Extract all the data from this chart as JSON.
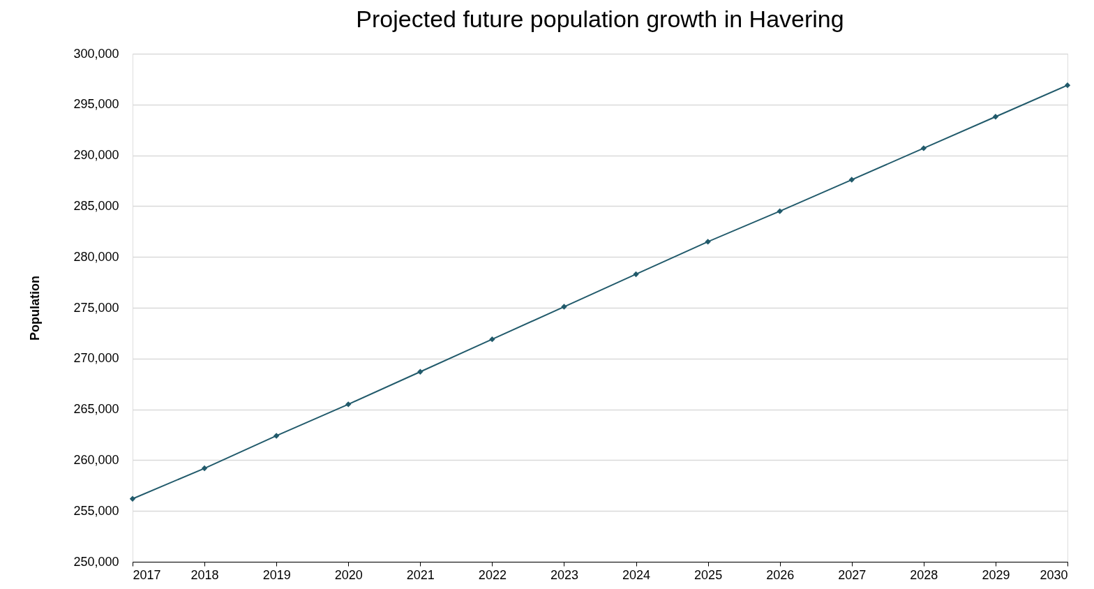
{
  "chart_data": {
    "type": "line",
    "title": "Projected future population growth in Havering",
    "ylabel": "Population",
    "x": [
      2017,
      2018,
      2019,
      2020,
      2021,
      2022,
      2023,
      2024,
      2025,
      2026,
      2027,
      2028,
      2029,
      2030
    ],
    "series": [
      {
        "color": "#215a6b",
        "values": [
          256200,
          259200,
          262400,
          265500,
          268700,
          271900,
          275100,
          278300,
          281500,
          284500,
          287600,
          290700,
          293800,
          296900
        ]
      }
    ],
    "xlim": [
      2017,
      2030
    ],
    "xticks": [
      2017,
      2018,
      2019,
      2020,
      2021,
      2022,
      2023,
      2024,
      2025,
      2026,
      2027,
      2028,
      2029,
      2030
    ],
    "ylim": [
      250000,
      300000
    ],
    "yticks": [
      {
        "value": 250000,
        "label": "250,000"
      },
      {
        "value": 255000,
        "label": "255,000"
      },
      {
        "value": 260000,
        "label": "260,000"
      },
      {
        "value": 265000,
        "label": "265,000"
      },
      {
        "value": 270000,
        "label": "270,000"
      },
      {
        "value": 275000,
        "label": "275,000"
      },
      {
        "value": 280000,
        "label": "280,000"
      },
      {
        "value": 285000,
        "label": "285,000"
      },
      {
        "value": 290000,
        "label": "290,000"
      },
      {
        "value": 295000,
        "label": "295,000"
      },
      {
        "value": 300000,
        "label": "300,000"
      }
    ],
    "grid": "y",
    "marker": "diamond",
    "line_style": "solid"
  }
}
